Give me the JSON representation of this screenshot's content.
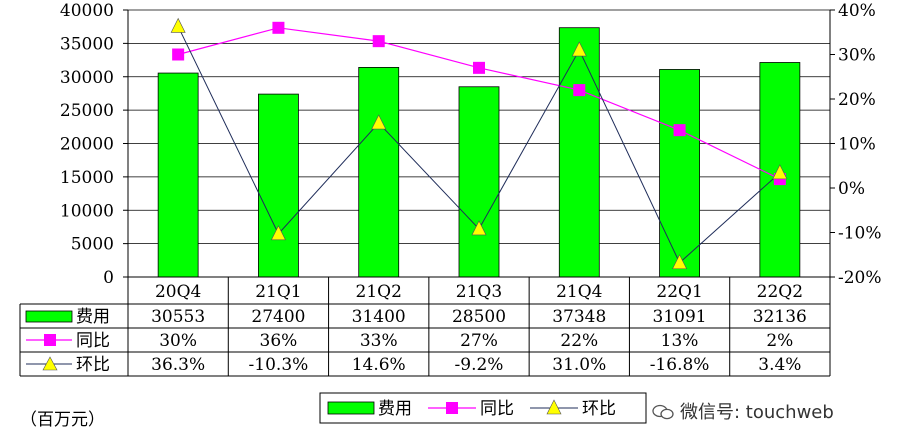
{
  "chart_data": {
    "type": "bar",
    "categories": [
      "20Q4",
      "21Q1",
      "21Q2",
      "21Q3",
      "21Q4",
      "22Q1",
      "22Q2"
    ],
    "series": [
      {
        "name": "费用",
        "type": "bar",
        "axis": "left",
        "values": [
          30553,
          27400,
          31400,
          28500,
          37348,
          31091,
          32136
        ],
        "labels": [
          "30553",
          "27400",
          "31400",
          "28500",
          "37348",
          "31091",
          "32136"
        ],
        "color": "#00ff00"
      },
      {
        "name": "同比",
        "type": "line",
        "axis": "right",
        "marker": "square",
        "values": [
          30,
          36,
          33,
          27,
          22,
          13,
          2
        ],
        "labels": [
          "30%",
          "36%",
          "33%",
          "27%",
          "22%",
          "13%",
          "2%"
        ],
        "color": "#ff00ff"
      },
      {
        "name": "环比",
        "type": "line",
        "axis": "right",
        "marker": "triangle",
        "values": [
          36.3,
          -10.3,
          14.6,
          -9.2,
          31.0,
          -16.8,
          3.4
        ],
        "labels": [
          "36.3%",
          "-10.3%",
          "14.6%",
          "-9.2%",
          "31.0%",
          "-16.8%",
          "3.4%"
        ],
        "color": "#ffff00",
        "line_color": "#1f2d5a"
      }
    ],
    "y_left": {
      "min": 0,
      "max": 40000,
      "step": 5000,
      "ticks": [
        "0",
        "5000",
        "10000",
        "15000",
        "20000",
        "25000",
        "30000",
        "35000",
        "40000"
      ]
    },
    "y_right": {
      "min": -20,
      "max": 40,
      "step": 10,
      "ticks": [
        "-20%",
        "-10%",
        "0%",
        "10%",
        "20%",
        "30%",
        "40%"
      ]
    },
    "grid": true,
    "legend_position": "bottom",
    "data_table": true
  },
  "unit_note": "（百万元）",
  "watermark": "微信号: touchweb"
}
